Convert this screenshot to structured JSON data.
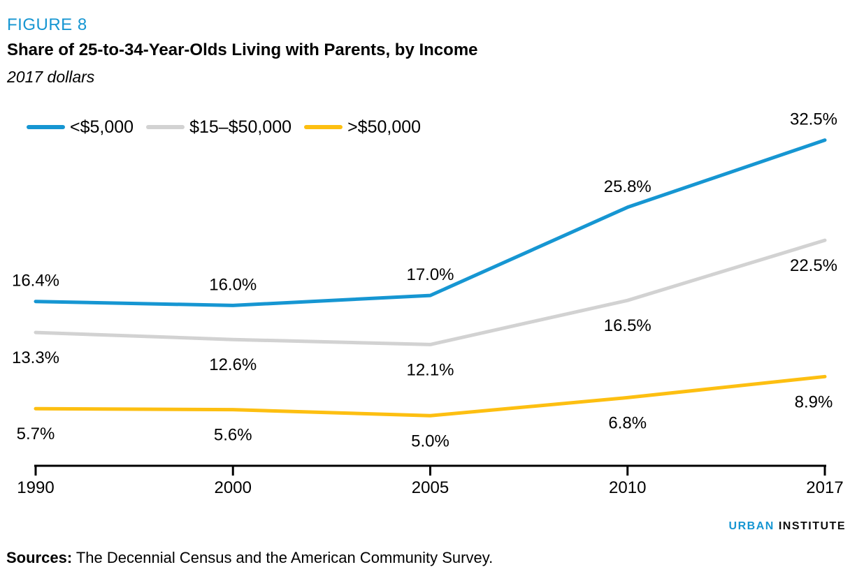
{
  "figure_label": "FIGURE 8",
  "chart_data": {
    "type": "line",
    "title": "Share of 25-to-34-Year-Olds Living with Parents, by Income",
    "subtitle": "2017 dollars",
    "categories": [
      "1990",
      "2000",
      "2005",
      "2010",
      "2017"
    ],
    "series": [
      {
        "name": "<$5,000",
        "color": "#1696d2",
        "values": [
          16.4,
          16.0,
          17.0,
          25.8,
          32.5
        ],
        "labels": [
          "16.4%",
          "16.0%",
          "17.0%",
          "25.8%",
          "32.5%"
        ],
        "label_side": "above"
      },
      {
        "name": "$15–$50,000",
        "color": "#d2d2d2",
        "values": [
          13.3,
          12.6,
          12.1,
          16.5,
          22.5
        ],
        "labels": [
          "13.3%",
          "12.6%",
          "12.1%",
          "16.5%",
          "22.5%"
        ],
        "label_side": "below"
      },
      {
        "name": ">$50,000",
        "color": "#fdbf11",
        "values": [
          5.7,
          5.6,
          5.0,
          6.8,
          8.9
        ],
        "labels": [
          "5.7%",
          "5.6%",
          "5.0%",
          "6.8%",
          "8.9%"
        ],
        "label_side": "below"
      }
    ],
    "xlabel": "",
    "ylabel": "",
    "ylim": [
      0,
      35
    ],
    "grid": false,
    "legend_position": "top-left",
    "axis_color": "#000000"
  },
  "branding": {
    "word1": "URBAN",
    "word2": "INSTITUTE"
  },
  "sources_label": "Sources:",
  "sources_text": " The Decennial Census and the American Community Survey."
}
